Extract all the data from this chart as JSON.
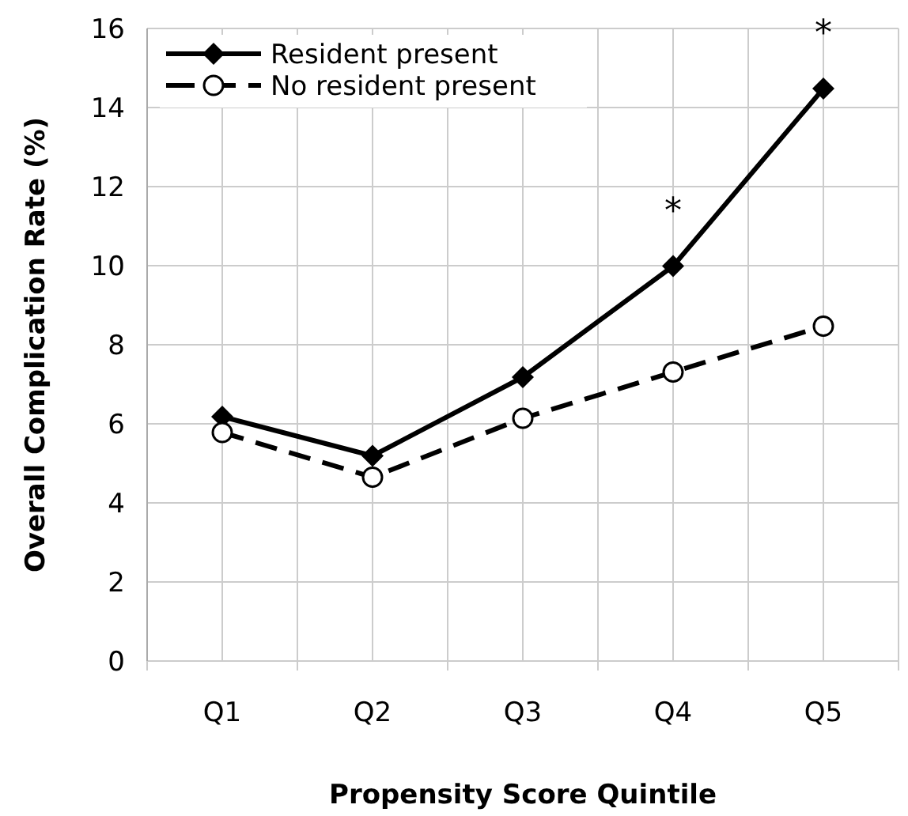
{
  "chart_data": {
    "type": "line",
    "xlabel": "Propensity Score Quintile",
    "ylabel": "Overall Complication Rate (%)",
    "categories": [
      "Q1",
      "Q2",
      "Q3",
      "Q4",
      "Q5"
    ],
    "ylim": [
      0,
      16
    ],
    "yticks": [
      0,
      2,
      4,
      6,
      8,
      10,
      12,
      14,
      16
    ],
    "grid": true,
    "legend": "top left",
    "series": [
      {
        "name": "Resident present",
        "color": "#000000",
        "marker": "diamond",
        "line_style": "solid",
        "values": [
          6.18,
          5.19,
          7.18,
          9.99,
          14.48
        ]
      },
      {
        "name": "No resident present",
        "color": "#000000",
        "marker": "circle",
        "line_style": "dashed",
        "values": [
          5.78,
          4.65,
          6.14,
          7.31,
          8.47
        ]
      }
    ],
    "annotations": [
      "*",
      "*"
    ]
  }
}
